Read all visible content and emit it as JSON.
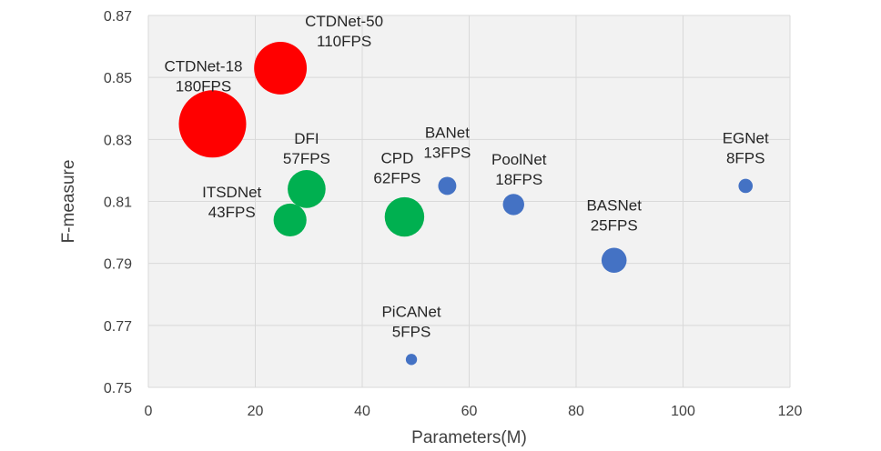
{
  "chart_data": {
    "type": "scatter",
    "subtype": "bubble",
    "title": "",
    "xlabel": "Parameters(M)",
    "ylabel": "F-measure",
    "xlim": [
      0,
      120
    ],
    "ylim": [
      0.75,
      0.87
    ],
    "xticks": [
      "0",
      "20",
      "40",
      "60",
      "80",
      "100",
      "120"
    ],
    "yticks": [
      "0.75",
      "0.77",
      "0.79",
      "0.81",
      "0.83",
      "0.85",
      "0.87"
    ],
    "grid": true,
    "legend": "none",
    "colors": {
      "ours": "#ff0000",
      "mid": "#00b050",
      "other": "#4472c4"
    },
    "points": [
      {
        "name": "CTDNet-18",
        "fps_label": "180FPS",
        "fps": 180,
        "x": 12,
        "y": 0.835,
        "color": "ours"
      },
      {
        "name": "CTDNet-50",
        "fps_label": "110FPS",
        "fps": 110,
        "x": 24.7,
        "y": 0.853,
        "color": "ours"
      },
      {
        "name": "DFI",
        "fps_label": "57FPS",
        "fps": 57,
        "x": 29.6,
        "y": 0.814,
        "color": "mid"
      },
      {
        "name": "ITSDNet",
        "fps_label": "43FPS",
        "fps": 43,
        "x": 26.5,
        "y": 0.804,
        "color": "mid"
      },
      {
        "name": "CPD",
        "fps_label": "62FPS",
        "fps": 62,
        "x": 47.9,
        "y": 0.805,
        "color": "mid"
      },
      {
        "name": "BANet",
        "fps_label": "13FPS",
        "fps": 13,
        "x": 55.9,
        "y": 0.815,
        "color": "other"
      },
      {
        "name": "PoolNet",
        "fps_label": "18FPS",
        "fps": 18,
        "x": 68.3,
        "y": 0.809,
        "color": "other"
      },
      {
        "name": "PiCANet",
        "fps_label": "5FPS",
        "fps": 5,
        "x": 49.2,
        "y": 0.759,
        "color": "other"
      },
      {
        "name": "BASNet",
        "fps_label": "25FPS",
        "fps": 25,
        "x": 87.1,
        "y": 0.791,
        "color": "other"
      },
      {
        "name": "EGNet",
        "fps_label": "8FPS",
        "fps": 8,
        "x": 111.7,
        "y": 0.815,
        "color": "other"
      }
    ]
  }
}
